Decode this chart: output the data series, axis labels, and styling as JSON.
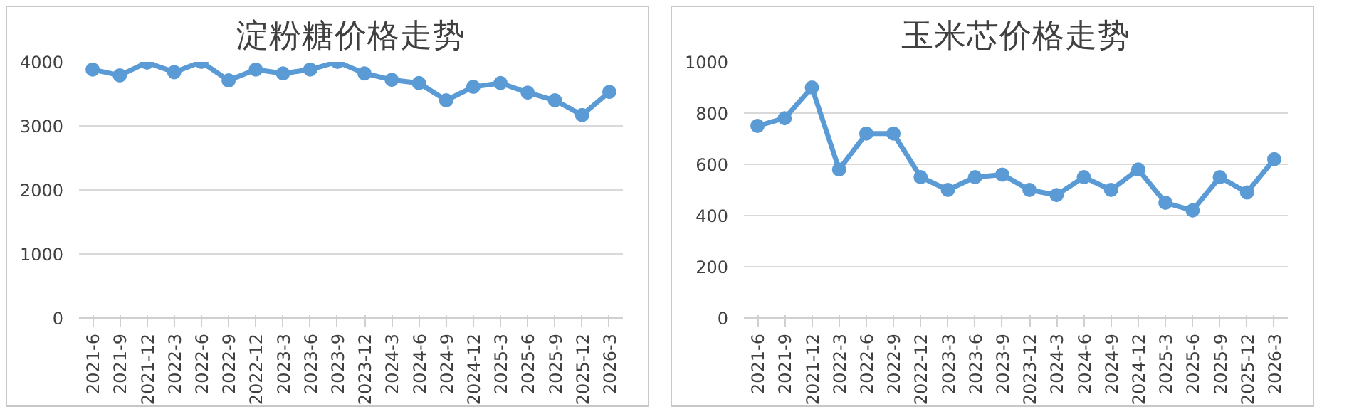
{
  "chart_data": [
    {
      "type": "line",
      "title": "淀粉糖价格走势",
      "categories": [
        "2021-6",
        "2021-9",
        "2021-12",
        "2022-3",
        "2022-6",
        "2022-9",
        "2022-12",
        "2023-3",
        "2023-6",
        "2023-9",
        "2023-12",
        "2024-3",
        "2024-6",
        "2024-9",
        "2024-12",
        "2025-3",
        "2025-6",
        "2025-9",
        "2025-12",
        "2026-3"
      ],
      "values": [
        3880,
        3790,
        3990,
        3840,
        4000,
        3710,
        3880,
        3820,
        3880,
        4000,
        3820,
        3720,
        3670,
        3400,
        3610,
        3670,
        3520,
        3400,
        3170,
        3530
      ],
      "color": "#5b9bd5",
      "ylim": [
        0,
        4000
      ],
      "yticks": [
        0,
        1000,
        2000,
        3000,
        4000
      ],
      "grid": "y",
      "marker": "circle",
      "line_style": "solid"
    },
    {
      "type": "line",
      "title": "玉米芯价格走势",
      "categories": [
        "2021-6",
        "2021-9",
        "2021-12",
        "2022-3",
        "2022-6",
        "2022-9",
        "2022-12",
        "2023-3",
        "2023-6",
        "2023-9",
        "2023-12",
        "2024-3",
        "2024-6",
        "2024-9",
        "2024-12",
        "2025-3",
        "2025-6",
        "2025-9",
        "2025-12",
        "2026-3"
      ],
      "values": [
        750,
        780,
        900,
        580,
        720,
        720,
        550,
        500,
        550,
        560,
        500,
        480,
        550,
        500,
        580,
        450,
        420,
        550,
        490,
        620
      ],
      "color": "#5b9bd5",
      "ylim": [
        0,
        1000
      ],
      "yticks": [
        0,
        200,
        400,
        600,
        800,
        1000
      ],
      "grid": "y",
      "marker": "circle",
      "line_style": "solid"
    }
  ]
}
